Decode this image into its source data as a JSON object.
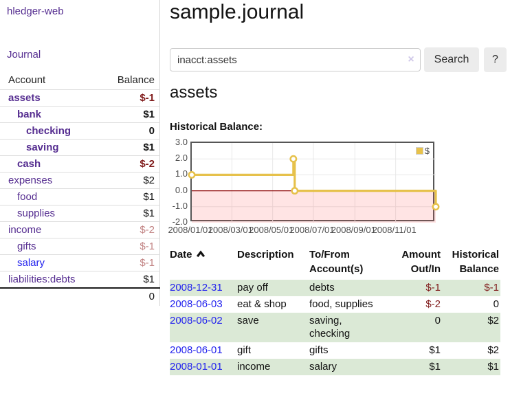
{
  "colors": {
    "link_purple": "#552d90",
    "link_blue": "#2222ee",
    "neg_strong": "#7f1a1a",
    "neg_dim": "#c28484",
    "stripe_green": "#dbe9d6",
    "chart_line": "#e6c14b",
    "chart_negative_fill": "rgba(255,90,90,0.16)",
    "chart_zero_line": "#8b0000",
    "chart_grid": "#e8e8e8"
  },
  "sidebar": {
    "app_title": "hledger-web",
    "journal_link": "Journal",
    "header": {
      "account": "Account",
      "balance": "Balance"
    },
    "accounts": [
      {
        "name": "assets",
        "depth": 1,
        "bold": true,
        "balance": "$-1",
        "balance_color": "neg_strong"
      },
      {
        "name": "bank",
        "depth": 2,
        "bold": true,
        "balance": "$1"
      },
      {
        "name": "checking",
        "depth": 3,
        "bold": true,
        "balance": "0"
      },
      {
        "name": "saving",
        "depth": 3,
        "bold": true,
        "balance": "$1"
      },
      {
        "name": "cash",
        "depth": 2,
        "bold": true,
        "balance": "$-2",
        "balance_color": "neg_strong"
      },
      {
        "name": "expenses",
        "depth": 1,
        "bold": false,
        "balance": "$2"
      },
      {
        "name": "food",
        "depth": 2,
        "bold": false,
        "balance": "$1"
      },
      {
        "name": "supplies",
        "depth": 2,
        "bold": false,
        "balance": "$1"
      },
      {
        "name": "income",
        "depth": 1,
        "bold": false,
        "balance": "$-2",
        "balance_color": "neg_dim"
      },
      {
        "name": "gifts",
        "depth": 2,
        "bold": false,
        "balance": "$-1",
        "balance_color": "neg_dim"
      },
      {
        "name": "salary",
        "depth": 2,
        "bold": false,
        "balance": "$-1",
        "balance_color": "neg_dim",
        "name_color": "blue"
      },
      {
        "name": "liabilities:debts",
        "depth": 1,
        "bold": false,
        "balance": "$1"
      }
    ],
    "total": "0"
  },
  "header": {
    "title": "sample.journal"
  },
  "search": {
    "value": "inacct:assets",
    "clear_icon": "×",
    "button_label": "Search",
    "help_label": "?"
  },
  "account_page": {
    "heading": "assets",
    "chart_title": "Historical Balance:"
  },
  "chart_data": {
    "type": "line",
    "step": true,
    "title": "Historical Balance",
    "x_range": [
      "2008-01-01",
      "2008-12-31"
    ],
    "ylim": [
      -2,
      3
    ],
    "yticks": [
      "3.0",
      "2.0",
      "1.0",
      "0.0",
      "-1.0",
      "-2.0"
    ],
    "xticks": [
      "2008/01/01",
      "2008/03/01",
      "2008/05/01",
      "2008/07/01",
      "2008/09/01",
      "2008/11/01"
    ],
    "series": [
      {
        "name": "$",
        "points": [
          [
            "2008-01-01",
            1
          ],
          [
            "2008-06-01",
            2
          ],
          [
            "2008-06-03",
            0
          ],
          [
            "2008-12-31",
            -1
          ]
        ]
      }
    ],
    "legend_label": "$",
    "legend_position": "top-right",
    "negative_region_shaded": true,
    "grid": true
  },
  "register_table": {
    "headers": [
      {
        "line1": "Date"
      },
      {
        "line1": "Description"
      },
      {
        "line1": "To/From",
        "line2": "Account(s)"
      },
      {
        "line1": "Amount",
        "line2": "Out/In"
      },
      {
        "line1": "Historical",
        "line2": "Balance"
      }
    ],
    "rows": [
      {
        "date": "2008-12-31",
        "description": "pay off",
        "accounts": "debts",
        "amount": "$-1",
        "balance": "$-1",
        "shaded": true
      },
      {
        "date": "2008-06-03",
        "description": "eat & shop",
        "accounts": "food, supplies",
        "amount": "$-2",
        "balance": "0",
        "shaded": false
      },
      {
        "date": "2008-06-02",
        "description": "save",
        "accounts": "saving, checking",
        "amount": "0",
        "balance": "$2",
        "shaded": true
      },
      {
        "date": "2008-06-01",
        "description": "gift",
        "accounts": "gifts",
        "amount": "$1",
        "balance": "$2",
        "shaded": false
      },
      {
        "date": "2008-01-01",
        "description": "income",
        "accounts": "salary",
        "amount": "$1",
        "balance": "$1",
        "shaded": true
      }
    ]
  }
}
